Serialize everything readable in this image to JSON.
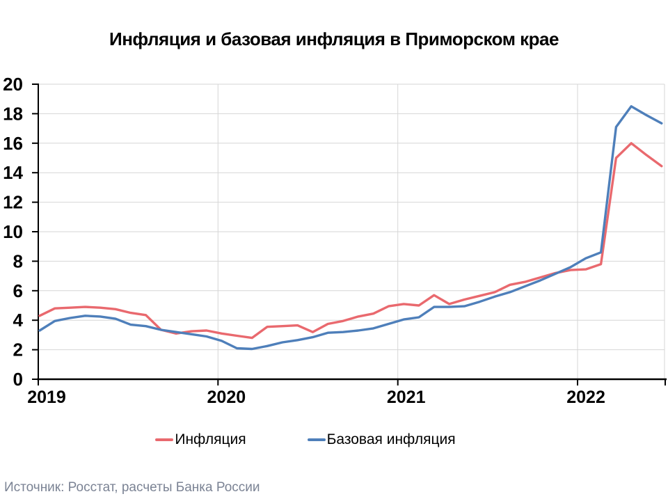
{
  "page": {
    "background": "#ffffff"
  },
  "colors": {
    "axis": "#000000",
    "grid": "#D6D6D6",
    "title_text": "#000000",
    "source_text": "#7B8394",
    "inflation_line": "#E9696E",
    "core_inflation_line": "#4E7FBA"
  },
  "source": "Источник: Росстат, расчеты Банка России",
  "chart_data": {
    "type": "line",
    "title": "Инфляция и базовая инфляция в Приморском крае",
    "xlabel": "",
    "ylabel": "",
    "ylim": [
      0,
      20
    ],
    "y_ticks": [
      0,
      2,
      4,
      6,
      8,
      10,
      12,
      14,
      16,
      18,
      20
    ],
    "x_tick_labels": [
      "2019",
      "2020",
      "2021",
      "2022"
    ],
    "grid": {
      "horizontal": true,
      "vertical_year_boundaries": true
    },
    "legend_position": "bottom",
    "x": [
      "2019-01",
      "2019-02",
      "2019-03",
      "2019-04",
      "2019-05",
      "2019-06",
      "2019-07",
      "2019-08",
      "2019-09",
      "2019-10",
      "2019-11",
      "2019-12",
      "2020-01",
      "2020-02",
      "2020-03",
      "2020-04",
      "2020-05",
      "2020-06",
      "2020-07",
      "2020-08",
      "2020-09",
      "2020-10",
      "2020-11",
      "2020-12",
      "2021-01",
      "2021-02",
      "2021-03",
      "2021-04",
      "2021-05",
      "2021-06",
      "2021-07",
      "2021-08",
      "2021-09",
      "2021-10",
      "2021-11",
      "2021-12",
      "2022-01",
      "2022-02",
      "2022-03",
      "2022-04",
      "2022-05",
      "2022-06"
    ],
    "series": [
      {
        "name": "Инфляция",
        "color": "#E9696E",
        "values": [
          4.3,
          4.8,
          4.85,
          4.9,
          4.85,
          4.75,
          4.5,
          4.35,
          3.35,
          3.1,
          3.25,
          3.3,
          3.1,
          2.95,
          2.8,
          3.55,
          3.6,
          3.65,
          3.2,
          3.75,
          3.95,
          4.25,
          4.45,
          4.95,
          5.1,
          5.0,
          5.7,
          5.1,
          5.4,
          5.65,
          5.9,
          6.4,
          6.6,
          6.9,
          7.2,
          7.4,
          7.45,
          7.8,
          15.0,
          16.0,
          15.2,
          14.45
        ]
      },
      {
        "name": "Базовая инфляция",
        "color": "#4E7FBA",
        "values": [
          3.3,
          3.95,
          4.15,
          4.3,
          4.25,
          4.1,
          3.7,
          3.6,
          3.35,
          3.2,
          3.05,
          2.9,
          2.6,
          2.1,
          2.05,
          2.25,
          2.5,
          2.65,
          2.85,
          3.15,
          3.2,
          3.3,
          3.45,
          3.75,
          4.05,
          4.2,
          4.9,
          4.9,
          4.95,
          5.25,
          5.6,
          5.9,
          6.3,
          6.7,
          7.15,
          7.6,
          8.2,
          8.6,
          17.1,
          18.5,
          17.9,
          17.35
        ]
      }
    ]
  }
}
